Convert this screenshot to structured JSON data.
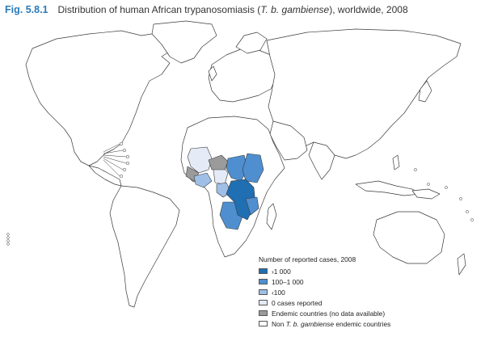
{
  "figure": {
    "number": "Fig. 5.8.1",
    "title_before": "Distribution of human African trypanosomiasis (",
    "title_italic": "T. b. gambiense",
    "title_after": "), worldwide, 2008"
  },
  "legend": {
    "title": "Number of reported cases, 2008",
    "items": [
      {
        "label": "›1 000",
        "color": "#1f6fb2"
      },
      {
        "label": "100–1 000",
        "color": "#4f8fd0"
      },
      {
        "label": "‹100",
        "color": "#9fbfe6"
      },
      {
        "label": "0 cases reported",
        "color": "#e4ebf7"
      },
      {
        "label": "Endemic countries (no data available)",
        "color": "#9b9b9b"
      },
      {
        "label_before": "Non ",
        "label_italic": "T. b. gambiense",
        "label_after": " endemic countries",
        "color": "#ffffff"
      }
    ]
  },
  "colors": {
    "land_fill": "#ffffff",
    "border": "#3a3a3a",
    "title_accent": "#2a7ab8"
  }
}
